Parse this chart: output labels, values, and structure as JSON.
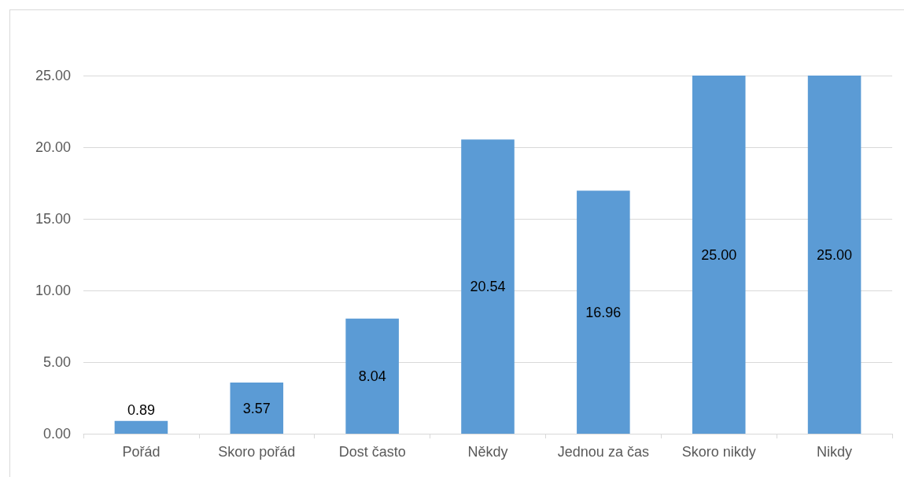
{
  "chart_data": {
    "type": "bar",
    "categories": [
      "Pořád",
      "Skoro pořád",
      "Dost často",
      "Někdy",
      "Jednou za čas",
      "Skoro nikdy",
      "Nikdy"
    ],
    "values": [
      0.89,
      3.57,
      8.04,
      20.54,
      16.96,
      25,
      25
    ],
    "value_labels": [
      "0.89",
      "3.57",
      "8.04",
      "20.54",
      "16.96",
      "25.00",
      "25.00"
    ],
    "color": "#5b9bd5",
    "ylim": [
      0,
      25
    ],
    "yticks": [
      {
        "value": 0,
        "label": "0.00"
      },
      {
        "value": 5,
        "label": "5.00"
      },
      {
        "value": 10,
        "label": "10.00"
      },
      {
        "value": 15,
        "label": "15.00"
      },
      {
        "value": 20,
        "label": "20.00"
      },
      {
        "value": 25,
        "label": "25.00"
      }
    ],
    "grid": "y"
  }
}
